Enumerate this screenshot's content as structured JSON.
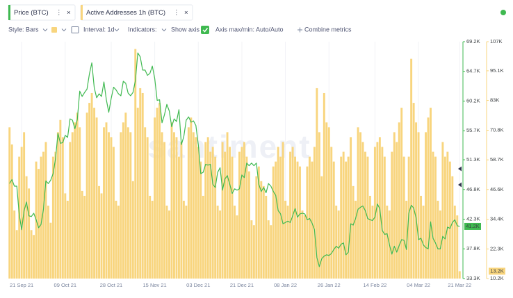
{
  "chart_data": {
    "type": "combo",
    "toolbar": [
      "Style: Bars",
      "Interval: 1d",
      "Indicators:",
      "Show axis",
      "Axis max/min: Auto/Auto",
      "Combine metrics"
    ],
    "watermark": "santiment",
    "categories": [
      null,
      null,
      null,
      null,
      null,
      "21 Sep 21",
      null,
      null,
      null,
      null,
      null,
      null,
      null,
      null,
      null,
      null,
      null,
      null,
      null,
      null,
      null,
      null,
      null,
      "09 Oct 21",
      null,
      null,
      null,
      null,
      null,
      null,
      null,
      null,
      null,
      null,
      null,
      null,
      null,
      null,
      null,
      null,
      null,
      null,
      "28 Oct 21",
      null,
      null,
      null,
      null,
      null,
      null,
      null,
      null,
      null,
      null,
      null,
      null,
      null,
      null,
      null,
      null,
      null,
      "15 Nov 21",
      null,
      null,
      null,
      null,
      null,
      null,
      null,
      null,
      null,
      null,
      null,
      null,
      null,
      null,
      null,
      null,
      null,
      "03 Dec 21",
      null,
      null,
      null,
      null,
      null,
      null,
      null,
      null,
      null,
      null,
      null,
      null,
      null,
      null,
      null,
      null,
      null,
      "21 Dec 21",
      null,
      null,
      null,
      null,
      null,
      null,
      null,
      null,
      null,
      null,
      null,
      null,
      null,
      null,
      null,
      null,
      null,
      "08 Jan 22",
      null,
      null,
      null,
      null,
      null,
      null,
      null,
      null,
      null,
      null,
      null,
      null,
      null,
      null,
      null,
      null,
      null,
      "26 Jan 22",
      null,
      null,
      null,
      null,
      null,
      null,
      null,
      null,
      null,
      null,
      null,
      null,
      null,
      null,
      null,
      null,
      null,
      null,
      "14 Feb 22",
      null,
      null,
      null,
      null,
      null,
      null,
      null,
      null,
      null,
      null,
      null,
      null,
      null,
      null,
      null,
      null,
      null,
      "04 Mar 22",
      null,
      null,
      null,
      null,
      null,
      null,
      null,
      null,
      null,
      null,
      null,
      null,
      null,
      null,
      null,
      null,
      "21 Mar 22"
    ],
    "ylim": [
      33300,
      69200
    ],
    "yticks": [
      {
        "value": 69200,
        "label": "69.2K"
      },
      {
        "value": 64700,
        "label": "64.7K"
      },
      {
        "value": 60200,
        "label": "60.2K"
      },
      {
        "value": 55700,
        "label": "55.7K"
      },
      {
        "value": 51300,
        "label": "51.3K"
      },
      {
        "value": 46800,
        "label": "46.8K"
      },
      {
        "value": 42300,
        "label": "42.3K"
      },
      {
        "value": 37800,
        "label": "37.8K"
      },
      {
        "value": 33300,
        "label": "33.3K"
      }
    ],
    "y2lim": [
      10200,
      107000
    ],
    "y2ticks": [
      {
        "value": 107000,
        "label": "107K"
      },
      {
        "value": 95100,
        "label": "95.1K"
      },
      {
        "value": 83000,
        "label": "83K"
      },
      {
        "value": 70800,
        "label": "70.8K"
      },
      {
        "value": 58700,
        "label": "58.7K"
      },
      {
        "value": 46600,
        "label": "46.6K"
      },
      {
        "value": 34400,
        "label": "34.4K"
      },
      {
        "value": 22300,
        "label": "22.3K"
      },
      {
        "value": 10200,
        "label": "10.2K"
      }
    ],
    "series": [
      {
        "name": "Price (BTC)",
        "type": "line",
        "color": "#3fb950",
        "last_value_label": "41.2K",
        "values": [
          47700,
          48300,
          47300,
          47300,
          43000,
          40700,
          43600,
          44900,
          42800,
          42700,
          43200,
          42200,
          41000,
          41500,
          43800,
          48100,
          47700,
          48200,
          49200,
          51500,
          55300,
          53800,
          53900,
          55000,
          54700,
          57500,
          57300,
          56000,
          57400,
          61700,
          60900,
          61500,
          62000,
          64300,
          66000,
          62200,
          60700,
          61300,
          60900,
          63100,
          60400,
          58500,
          60600,
          62300,
          61900,
          61300,
          61000,
          63200,
          62900,
          61400,
          61000,
          61500,
          63300,
          67500,
          66900,
          64900,
          64900,
          64100,
          64400,
          65500,
          63600,
          60300,
          60400,
          56900,
          58100,
          59700,
          58700,
          56300,
          57500,
          57100,
          58900,
          53600,
          54800,
          57300,
          57800,
          57000,
          57200,
          56500,
          53600,
          49200,
          49400,
          50600,
          50500,
          50600,
          47600,
          47100,
          49400,
          50100,
          46700,
          48400,
          48900,
          47600,
          46200,
          46900,
          46700,
          46900,
          49000,
          48600,
          50800,
          50400,
          50800,
          50400,
          50800,
          47600,
          46500,
          47100,
          46300,
          47700,
          47300,
          46500,
          45900,
          43600,
          43100,
          41600,
          41800,
          42000,
          41800,
          42800,
          43900,
          42600,
          43100,
          43200,
          43100,
          42200,
          42400,
          41700,
          40700,
          36500,
          35100,
          36300,
          36700,
          36900,
          36800,
          37100,
          37700,
          38200,
          37900,
          38500,
          38700,
          36900,
          37300,
          41600,
          41400,
          42400,
          43800,
          44100,
          44300,
          43600,
          42400,
          42200,
          42100,
          42600,
          44600,
          43900,
          40600,
          40000,
          40100,
          38400,
          37000,
          38200,
          37300,
          38300,
          39200,
          39100,
          37700,
          43200,
          44400,
          44000,
          42500,
          39200,
          39400,
          38400,
          38000,
          37800,
          41900,
          39400,
          38700,
          37800,
          37800,
          39700,
          39300,
          41100,
          40900,
          41800,
          42200,
          41300,
          41200
        ]
      },
      {
        "name": "Active Addresses 1h (BTC)",
        "type": "bar",
        "axis": "y2",
        "color": "#f8d57e",
        "last_value_label": "13.2K",
        "values": [
          72000,
          65000,
          38000,
          30000,
          60000,
          64000,
          70000,
          52000,
          47000,
          30000,
          28000,
          58000,
          55000,
          60000,
          62000,
          66000,
          40000,
          33000,
          60000,
          62000,
          70000,
          75000,
          68000,
          45000,
          42000,
          66000,
          70000,
          74000,
          78000,
          72000,
          46000,
          44000,
          78000,
          82000,
          86000,
          80000,
          76000,
          48000,
          45000,
          72000,
          74000,
          70000,
          68000,
          64000,
          42000,
          40000,
          70000,
          74000,
          78000,
          72000,
          70000,
          50000,
          104000,
          80000,
          88000,
          86000,
          72000,
          68000,
          44000,
          42000,
          76000,
          80000,
          82000,
          70000,
          66000,
          40000,
          38000,
          74000,
          70000,
          68000,
          60000,
          66000,
          42000,
          40000,
          72000,
          76000,
          70000,
          68000,
          64000,
          58000,
          44000,
          66000,
          68000,
          62000,
          64000,
          60000,
          40000,
          38000,
          66000,
          62000,
          70000,
          64000,
          60000,
          40000,
          36000,
          62000,
          64000,
          66000,
          60000,
          54000,
          34000,
          32000,
          52000,
          56000,
          50000,
          48000,
          44000,
          34000,
          32000,
          56000,
          58000,
          64000,
          60000,
          66000,
          42000,
          40000,
          62000,
          64000,
          60000,
          58000,
          56000,
          38000,
          36000,
          56000,
          60000,
          58000,
          64000,
          88000,
          70000,
          52000,
          86000,
          74000,
          72000,
          64000,
          58000,
          40000,
          38000,
          60000,
          62000,
          58000,
          60000,
          68000,
          48000,
          42000,
          72000,
          70000,
          66000,
          62000,
          60000,
          44000,
          40000,
          64000,
          66000,
          68000,
          64000,
          60000,
          40000,
          38000,
          62000,
          70000,
          66000,
          74000,
          80000,
          60000,
          42000,
          60000,
          100000,
          82000,
          74000,
          70000,
          44000,
          40000,
          70000,
          76000,
          80000,
          62000,
          60000,
          42000,
          38000,
          66000,
          60000,
          62000,
          58000,
          52000,
          40000,
          36000,
          13200
        ]
      }
    ]
  }
}
